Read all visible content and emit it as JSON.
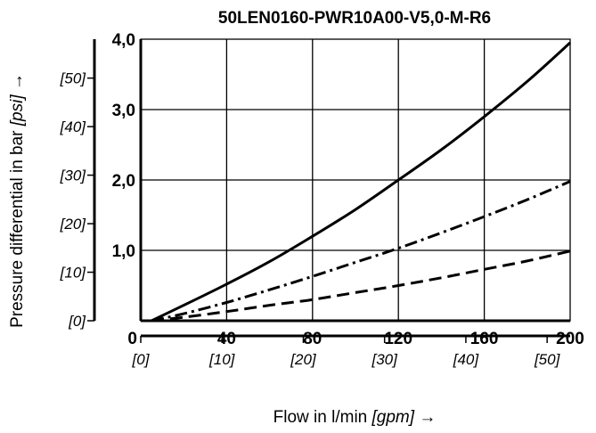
{
  "chart_data": {
    "type": "line",
    "title": "50LEN0160-PWR10A00-V5,0-M-R6",
    "xlabel": {
      "text": "Flow in l/min ",
      "unit": "[gpm]",
      "arrow": " →"
    },
    "ylabel": {
      "text": "Pressure differential in bar ",
      "unit": "[psi]",
      "arrow": " →"
    },
    "xlim": [
      0,
      200
    ],
    "ylim": [
      0,
      4
    ],
    "grid": true,
    "x_ticks": [
      {
        "value": 0,
        "label": "0"
      },
      {
        "value": 40,
        "label": "40"
      },
      {
        "value": 80,
        "label": "80"
      },
      {
        "value": 120,
        "label": "120"
      },
      {
        "value": 160,
        "label": "160"
      },
      {
        "value": 200,
        "label": "200"
      }
    ],
    "y_ticks": [
      {
        "value": 1,
        "label": "1,0"
      },
      {
        "value": 2,
        "label": "2,0"
      },
      {
        "value": 3,
        "label": "3,0"
      },
      {
        "value": 4,
        "label": "4,0"
      }
    ],
    "x_secondary_ticks": [
      {
        "value": 0,
        "label": "[0]"
      },
      {
        "value": 10,
        "label": "[10]"
      },
      {
        "value": 20,
        "label": "[20]"
      },
      {
        "value": 30,
        "label": "[30]"
      },
      {
        "value": 40,
        "label": "[40]"
      },
      {
        "value": 50,
        "label": "[50]"
      }
    ],
    "y_secondary_ticks": [
      {
        "value": 0,
        "label": "[0]"
      },
      {
        "value": 10,
        "label": "[10]"
      },
      {
        "value": 20,
        "label": "[20]"
      },
      {
        "value": 30,
        "label": "[30]"
      },
      {
        "value": 40,
        "label": "[40]"
      },
      {
        "value": 50,
        "label": "[50]"
      }
    ],
    "series": [
      {
        "style": "solid",
        "x": [
          5,
          20,
          40,
          60,
          80,
          100,
          120,
          140,
          160,
          180,
          200
        ],
        "y": [
          0,
          0.22,
          0.52,
          0.84,
          1.2,
          1.58,
          2.0,
          2.43,
          2.9,
          3.4,
          3.95
        ]
      },
      {
        "style": "dash-dot",
        "x": [
          5,
          20,
          40,
          60,
          80,
          100,
          120,
          140,
          160,
          180,
          200
        ],
        "y": [
          0,
          0.1,
          0.26,
          0.44,
          0.63,
          0.83,
          1.03,
          1.25,
          1.48,
          1.72,
          1.98
        ]
      },
      {
        "style": "dashed",
        "x": [
          5,
          20,
          40,
          60,
          80,
          100,
          120,
          140,
          160,
          180,
          200
        ],
        "y": [
          0,
          0.05,
          0.13,
          0.22,
          0.3,
          0.4,
          0.5,
          0.61,
          0.73,
          0.85,
          0.99
        ]
      }
    ]
  }
}
